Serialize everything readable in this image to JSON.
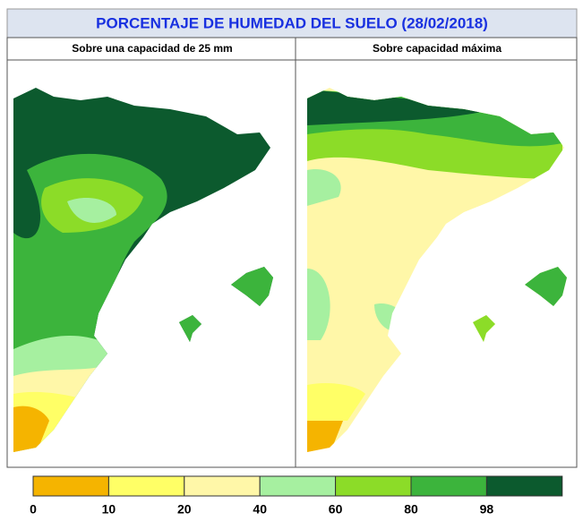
{
  "header": {
    "title": "PORCENTAJE DE HUMEDAD DEL SUELO (28/02/2018)"
  },
  "panels": [
    {
      "subtitle": "Sobre una capacidad de 25 mm"
    },
    {
      "subtitle": "Sobre capacidad máxima"
    }
  ],
  "legend": {
    "ticks": [
      0,
      10,
      20,
      40,
      60,
      80,
      98
    ],
    "colors": [
      "#f5b400",
      "#ffff66",
      "#fff7a8",
      "#a6f0a0",
      "#8cdc28",
      "#3cb43c",
      "#0c5a2e"
    ]
  }
}
